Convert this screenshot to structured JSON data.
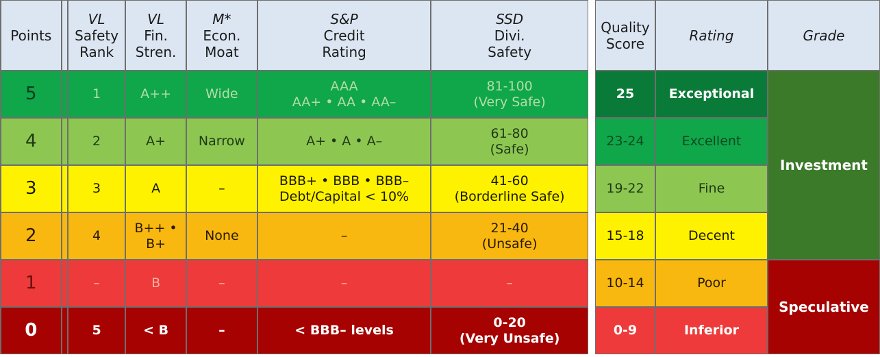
{
  "left_table": {
    "headers": {
      "points": "Points",
      "vl_safety": [
        "VL",
        "Safety",
        "Rank"
      ],
      "vl_fin": [
        "VL",
        "Fin.",
        "Stren."
      ],
      "moat": [
        "M*",
        "Econ.",
        "Moat"
      ],
      "sp": [
        "S&P",
        "Credit",
        "Rating"
      ],
      "ssd": [
        "SSD",
        "Divi.",
        "Safety"
      ]
    },
    "rows": [
      {
        "points": "5",
        "safety_rank": "1",
        "fin_strength": "A++",
        "moat": "Wide",
        "credit": [
          "AAA",
          "AA+ • AA • AA–"
        ],
        "divi": [
          "81-100",
          "(Very Safe)"
        ]
      },
      {
        "points": "4",
        "safety_rank": "2",
        "fin_strength": "A+",
        "moat": "Narrow",
        "credit": [
          "A+ • A • A–"
        ],
        "divi": [
          "61-80",
          "(Safe)"
        ]
      },
      {
        "points": "3",
        "safety_rank": "3",
        "fin_strength": "A",
        "moat": "–",
        "credit": [
          "BBB+ • BBB • BBB–",
          "Debt/Capital < 10%"
        ],
        "divi": [
          "41-60",
          "(Borderline Safe)"
        ]
      },
      {
        "points": "2",
        "safety_rank": "4",
        "fin_strength": "B++ • B+",
        "moat": "None",
        "credit": [
          "–"
        ],
        "divi": [
          "21-40",
          "(Unsafe)"
        ]
      },
      {
        "points": "1",
        "safety_rank": "–",
        "fin_strength": "B",
        "moat": "–",
        "credit": [
          "–"
        ],
        "divi": [
          "–"
        ]
      },
      {
        "points": "0",
        "safety_rank": "5",
        "fin_strength": "< B",
        "moat": "–",
        "credit": [
          "< BBB– levels"
        ],
        "divi": [
          "0-20",
          "(Very Unsafe)"
        ]
      }
    ]
  },
  "right_table": {
    "headers": {
      "quality": [
        "Quality",
        "Score"
      ],
      "rating": "Rating",
      "grade": "Grade"
    },
    "rows": [
      {
        "score": "25",
        "rating": "Exceptional"
      },
      {
        "score": "23-24",
        "rating": "Excellent"
      },
      {
        "score": "19-22",
        "rating": "Fine"
      },
      {
        "score": "15-18",
        "rating": "Decent"
      },
      {
        "score": "10-14",
        "rating": "Poor"
      },
      {
        "score": "0-9",
        "rating": "Inferior"
      }
    ],
    "grades": {
      "investment": "Investment",
      "speculative": "Speculative"
    }
  },
  "colors": {
    "header_bg": "#dce6f2",
    "dark_green": "#0a7a38",
    "green": "#10a64a",
    "light_green": "#8ec652",
    "yellow": "#fff200",
    "orange": "#f9b810",
    "red": "#ee3a3a",
    "dark_red": "#a60202",
    "investment_green": "#3a7a28"
  }
}
